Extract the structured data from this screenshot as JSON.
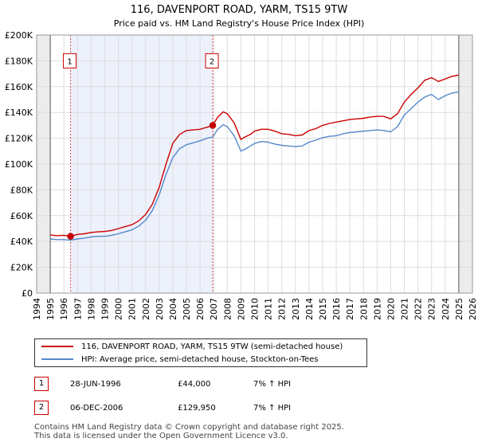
{
  "chart_data": {
    "type": "line",
    "title": "116, DAVENPORT ROAD, YARM, TS15 9TW",
    "subtitle": "Price paid vs. HM Land Registry's House Price Index (HPI)",
    "xlabel": "",
    "ylabel": "",
    "xlim": [
      1994,
      2026
    ],
    "ylim": [
      0,
      200000
    ],
    "x_ticks": [
      "1994",
      "1995",
      "1996",
      "1997",
      "1998",
      "1999",
      "2000",
      "2001",
      "2002",
      "2003",
      "2004",
      "2005",
      "2006",
      "2007",
      "2008",
      "2009",
      "2010",
      "2011",
      "2012",
      "2013",
      "2014",
      "2015",
      "2016",
      "2017",
      "2018",
      "2019",
      "2020",
      "2021",
      "2022",
      "2023",
      "2024",
      "2025",
      "2026"
    ],
    "y_ticks": [
      {
        "value": 0,
        "label": "£0"
      },
      {
        "value": 20000,
        "label": "£20K"
      },
      {
        "value": 40000,
        "label": "£40K"
      },
      {
        "value": 60000,
        "label": "£60K"
      },
      {
        "value": 80000,
        "label": "£80K"
      },
      {
        "value": 100000,
        "label": "£100K"
      },
      {
        "value": 120000,
        "label": "£120K"
      },
      {
        "value": 140000,
        "label": "£140K"
      },
      {
        "value": 160000,
        "label": "£160K"
      },
      {
        "value": 180000,
        "label": "£180K"
      },
      {
        "value": 200000,
        "label": "£200K"
      }
    ],
    "grid": true,
    "shaded_region": {
      "x_start": 1996.49,
      "x_end": 2006.93
    },
    "data_start": 1995.0,
    "forecast_start": 2025.0,
    "series": [
      {
        "name": "116, DAVENPORT ROAD, YARM, TS15 9TW (semi-detached house)",
        "color": "#cc0000",
        "x": [
          1995.0,
          1995.5,
          1996.0,
          1996.49,
          1997.0,
          1997.5,
          1998.0,
          1998.5,
          1999.0,
          1999.5,
          2000.0,
          2000.5,
          2001.0,
          2001.5,
          2002.0,
          2002.5,
          2003.0,
          2003.5,
          2004.0,
          2004.5,
          2005.0,
          2005.5,
          2006.0,
          2006.5,
          2006.93,
          2007.3,
          2007.7,
          2008.0,
          2008.5,
          2009.0,
          2009.3,
          2009.7,
          2010.0,
          2010.5,
          2011.0,
          2011.5,
          2012.0,
          2012.5,
          2013.0,
          2013.5,
          2014.0,
          2014.5,
          2015.0,
          2015.5,
          2016.0,
          2016.5,
          2017.0,
          2017.5,
          2018.0,
          2018.5,
          2019.0,
          2019.5,
          2020.0,
          2020.5,
          2021.0,
          2021.5,
          2022.0,
          2022.5,
          2023.0,
          2023.5,
          2024.0,
          2024.5,
          2025.0
        ],
        "values": [
          45000,
          44500,
          44800,
          44000,
          45500,
          46000,
          47000,
          47500,
          47800,
          48500,
          50000,
          51500,
          53000,
          56000,
          61000,
          69000,
          82000,
          100000,
          116000,
          123000,
          126000,
          126500,
          127000,
          128500,
          129950,
          136500,
          140500,
          139000,
          132000,
          119000,
          121000,
          123000,
          125500,
          127000,
          127000,
          125500,
          123500,
          123000,
          122000,
          122500,
          126000,
          127500,
          130000,
          131500,
          132500,
          133500,
          134500,
          135000,
          135500,
          136500,
          137000,
          137000,
          135000,
          139000,
          148000,
          154000,
          159000,
          165000,
          167000,
          164000,
          166000,
          168000,
          169000
        ]
      },
      {
        "name": "HPI: Average price, semi-detached house, Stockton-on-Tees",
        "color": "#5588cc",
        "x": [
          1995.0,
          1995.5,
          1996.0,
          1996.49,
          1997.0,
          1997.5,
          1998.0,
          1998.5,
          1999.0,
          1999.5,
          2000.0,
          2000.5,
          2001.0,
          2001.5,
          2002.0,
          2002.5,
          2003.0,
          2003.5,
          2004.0,
          2004.5,
          2005.0,
          2005.5,
          2006.0,
          2006.5,
          2006.93,
          2007.3,
          2007.7,
          2008.0,
          2008.5,
          2009.0,
          2009.3,
          2009.7,
          2010.0,
          2010.5,
          2011.0,
          2011.5,
          2012.0,
          2012.5,
          2013.0,
          2013.5,
          2014.0,
          2014.5,
          2015.0,
          2015.5,
          2016.0,
          2016.5,
          2017.0,
          2017.5,
          2018.0,
          2018.5,
          2019.0,
          2019.5,
          2020.0,
          2020.5,
          2021.0,
          2021.5,
          2022.0,
          2022.5,
          2023.0,
          2023.5,
          2024.0,
          2024.5,
          2025.0
        ],
        "values": [
          42000,
          41500,
          41500,
          41000,
          42000,
          42500,
          43500,
          44000,
          44000,
          44800,
          46000,
          47500,
          49000,
          52000,
          56500,
          64000,
          76000,
          92000,
          105000,
          112000,
          115000,
          116500,
          118000,
          120000,
          121000,
          127000,
          130500,
          129000,
          122000,
          110000,
          111500,
          114000,
          116000,
          117500,
          117000,
          115500,
          114500,
          114000,
          113500,
          114000,
          117000,
          118500,
          120500,
          121500,
          122000,
          123500,
          124500,
          125000,
          125500,
          126000,
          126500,
          126000,
          125000,
          129000,
          138000,
          143000,
          148000,
          152000,
          154000,
          150000,
          153000,
          155000,
          156000
        ]
      }
    ],
    "markers": [
      {
        "label": "1",
        "x": 1996.49,
        "y": 44000,
        "box_y": 180000
      },
      {
        "label": "2",
        "x": 2006.93,
        "y": 129950,
        "box_y": 180000
      }
    ]
  },
  "legend": {
    "red_label": "116, DAVENPORT ROAD, YARM, TS15 9TW (semi-detached house)",
    "blue_label": "HPI: Average price, semi-detached house, Stockton-on-Tees",
    "red_color": "#cc0000",
    "blue_color": "#5588cc"
  },
  "transactions": [
    {
      "num": "1",
      "date": "28-JUN-1996",
      "price": "£44,000",
      "hpi": "7% ↑ HPI"
    },
    {
      "num": "2",
      "date": "06-DEC-2006",
      "price": "£129,950",
      "hpi": "7% ↑ HPI"
    }
  ],
  "footer": {
    "line1": "Contains HM Land Registry data © Crown copyright and database right 2025.",
    "line2": "This data is licensed under the Open Government Licence v3.0."
  }
}
